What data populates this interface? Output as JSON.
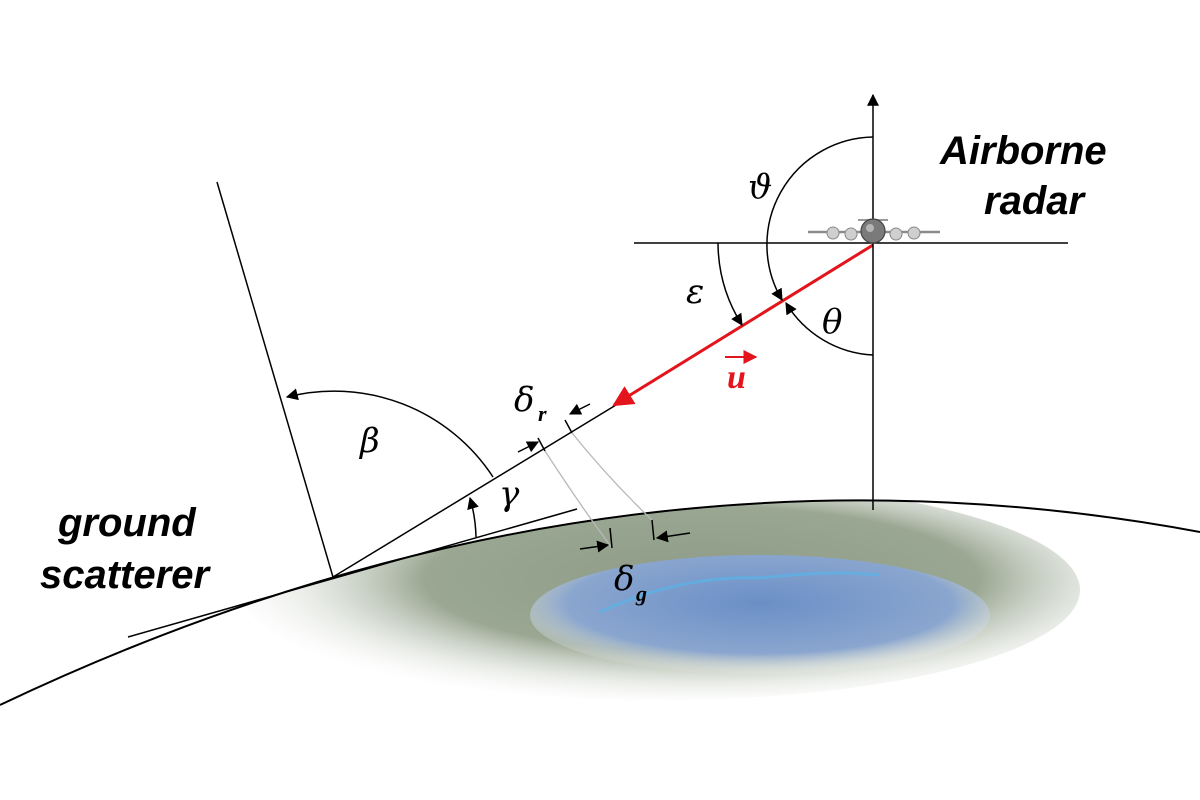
{
  "labels": {
    "airborne_radar_line1": "Airborne",
    "airborne_radar_line2": "radar",
    "ground_scatterer_line1": "ground",
    "ground_scatterer_line2": "scatterer",
    "theta_vartheta": "ϑ",
    "epsilon": "ε",
    "theta": "θ",
    "beta": "β",
    "gamma": "γ",
    "u_vector": "u",
    "delta_r": "δ",
    "delta_r_sub": "r",
    "delta_g": "δ",
    "delta_g_sub": "g"
  },
  "colors": {
    "line_of_sight": "#e3141b",
    "ink": "#000000",
    "terrain": "#8a9a86",
    "water": "#5b83c0"
  },
  "icons": {
    "aircraft": "aircraft-icon"
  }
}
